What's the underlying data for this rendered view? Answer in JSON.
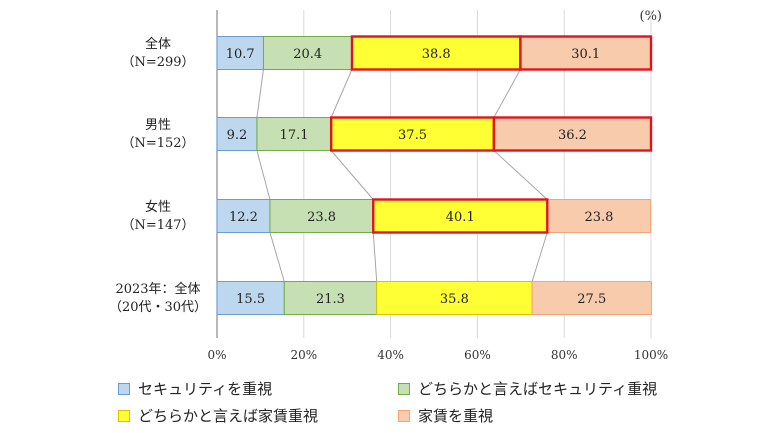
{
  "chart_data": {
    "type": "bar",
    "stacked": "percent",
    "orientation": "horizontal",
    "unit_label": "(%)",
    "categories": [
      [
        "全体",
        "（N=299）"
      ],
      [
        "男性",
        "（N=152）"
      ],
      [
        "女性",
        "（N=147）"
      ],
      [
        "2023年：全体",
        "（20代・30代）"
      ]
    ],
    "series": [
      {
        "name": "セキュリティを重視",
        "values": [
          10.7,
          9.2,
          12.2,
          15.5
        ],
        "color": "#bdd7ee",
        "border": "#6c9bd2"
      },
      {
        "name": "どちらかと言えばセキュリティ重視",
        "values": [
          20.4,
          17.1,
          23.8,
          21.3
        ],
        "color": "#c6e0b4",
        "border": "#70ad47"
      },
      {
        "name": "どちらかと言えば家賃重視",
        "values": [
          38.8,
          37.5,
          40.1,
          35.8
        ],
        "color": "#ffff33",
        "border": "#e0c000"
      },
      {
        "name": "家賃を重視",
        "values": [
          30.1,
          36.2,
          23.8,
          27.5
        ],
        "color": "#f8cbad",
        "border": "#f4a37a"
      }
    ],
    "highlight": {
      "border": "#e0141e",
      "segments": [
        [
          0,
          2
        ],
        [
          0,
          3
        ],
        [
          1,
          2
        ],
        [
          1,
          3
        ],
        [
          2,
          2
        ]
      ]
    },
    "xlim": [
      0,
      100
    ],
    "xticks": [
      "0%",
      "20%",
      "40%",
      "60%",
      "80%",
      "100%"
    ],
    "grid": true,
    "legend": "bottom"
  }
}
